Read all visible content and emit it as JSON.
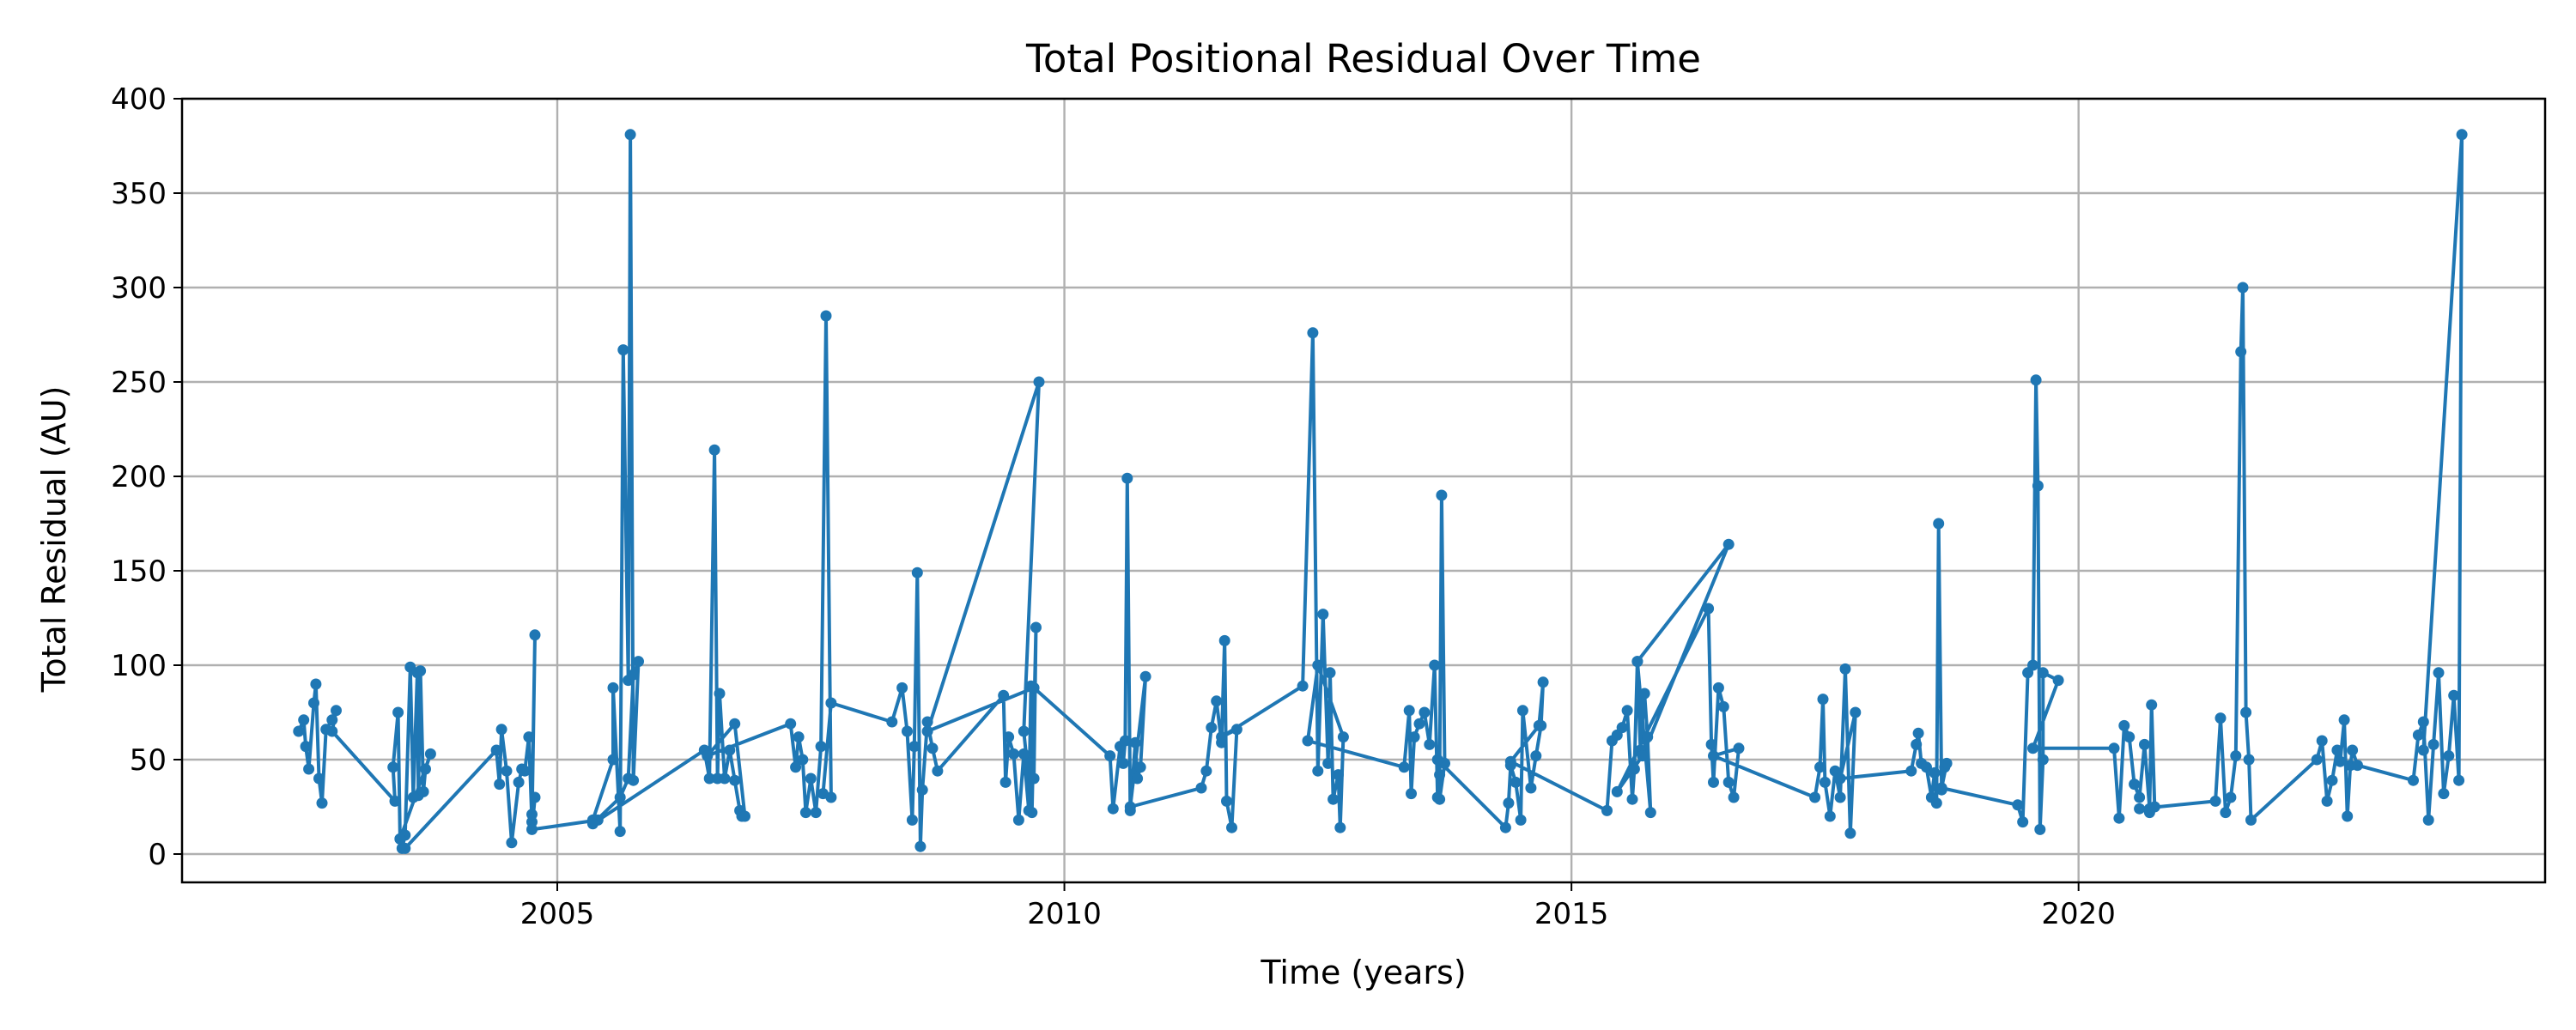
{
  "chart_data": {
    "type": "line",
    "title": "Total Positional Residual Over Time",
    "xlabel": "Time (years)",
    "ylabel": "Total Residual (AU)",
    "xlim": [
      2001.3,
      2024.6
    ],
    "ylim": [
      -15,
      400
    ],
    "x_ticks": [
      2005,
      2010,
      2015,
      2020
    ],
    "y_ticks": [
      0,
      50,
      100,
      150,
      200,
      250,
      300,
      350,
      400
    ],
    "grid": true,
    "marker": "circle",
    "line_color": "#1f77b4",
    "series": [
      {
        "points": [
          [
            2002.45,
            65
          ],
          [
            2002.5,
            71
          ],
          [
            2002.52,
            57
          ],
          [
            2002.55,
            45
          ],
          [
            2002.6,
            80
          ],
          [
            2002.62,
            90
          ],
          [
            2002.65,
            40
          ],
          [
            2002.68,
            27
          ],
          [
            2002.72,
            66
          ],
          [
            2002.78,
            71
          ],
          [
            2002.82,
            76
          ],
          [
            2002.78,
            65
          ],
          [
            2003.4,
            28
          ],
          [
            2003.38,
            46
          ],
          [
            2003.43,
            75
          ],
          [
            2003.45,
            8
          ],
          [
            2003.47,
            3
          ],
          [
            2003.5,
            10
          ],
          [
            2003.55,
            99
          ],
          [
            2003.58,
            30
          ],
          [
            2003.62,
            96
          ],
          [
            2003.63,
            31
          ],
          [
            2003.65,
            97
          ],
          [
            2003.68,
            33
          ],
          [
            2003.7,
            45
          ],
          [
            2003.75,
            53
          ],
          [
            2003.45,
            8
          ],
          [
            2003.5,
            3
          ],
          [
            2004.4,
            55
          ],
          [
            2004.43,
            37
          ],
          [
            2004.45,
            66
          ],
          [
            2004.5,
            44
          ],
          [
            2004.55,
            6
          ],
          [
            2004.62,
            38
          ],
          [
            2004.65,
            45
          ],
          [
            2004.68,
            44
          ],
          [
            2004.72,
            62
          ],
          [
            2004.75,
            17
          ],
          [
            2004.78,
            116
          ],
          [
            2004.75,
            21
          ],
          [
            2004.78,
            30
          ],
          [
            2004.75,
            13
          ],
          [
            2005.4,
            18
          ],
          [
            2005.35,
            18
          ],
          [
            2005.55,
            50
          ],
          [
            2005.55,
            88
          ],
          [
            2005.62,
            12
          ],
          [
            2005.65,
            267
          ],
          [
            2005.7,
            92
          ],
          [
            2005.72,
            381
          ],
          [
            2005.75,
            39
          ],
          [
            2005.8,
            102
          ],
          [
            2005.75,
            95
          ],
          [
            2005.7,
            40
          ],
          [
            2005.62,
            30
          ],
          [
            2005.35,
            16
          ],
          [
            2006.45,
            55
          ],
          [
            2006.5,
            40
          ],
          [
            2006.55,
            214
          ],
          [
            2006.58,
            40
          ],
          [
            2006.6,
            85
          ],
          [
            2006.65,
            40
          ],
          [
            2006.7,
            55
          ],
          [
            2006.75,
            39
          ],
          [
            2006.8,
            23
          ],
          [
            2006.82,
            20
          ],
          [
            2006.85,
            20
          ],
          [
            2006.75,
            69
          ],
          [
            2006.48,
            52
          ],
          [
            2007.3,
            69
          ],
          [
            2007.35,
            46
          ],
          [
            2007.38,
            62
          ],
          [
            2007.42,
            50
          ],
          [
            2007.45,
            22
          ],
          [
            2007.5,
            40
          ],
          [
            2007.55,
            22
          ],
          [
            2007.6,
            57
          ],
          [
            2007.65,
            285
          ],
          [
            2007.7,
            30
          ],
          [
            2007.62,
            32
          ],
          [
            2007.7,
            80
          ],
          [
            2008.3,
            70
          ],
          [
            2008.4,
            88
          ],
          [
            2008.45,
            65
          ],
          [
            2008.5,
            18
          ],
          [
            2008.52,
            57
          ],
          [
            2008.55,
            149
          ],
          [
            2008.58,
            4
          ],
          [
            2008.6,
            34
          ],
          [
            2008.65,
            70
          ],
          [
            2008.7,
            56
          ],
          [
            2008.75,
            44
          ],
          [
            2009.4,
            84
          ],
          [
            2009.42,
            38
          ],
          [
            2009.45,
            62
          ],
          [
            2009.5,
            53
          ],
          [
            2009.55,
            18
          ],
          [
            2009.6,
            53
          ],
          [
            2009.65,
            23
          ],
          [
            2009.67,
            89
          ],
          [
            2009.7,
            40
          ],
          [
            2009.72,
            120
          ],
          [
            2009.68,
            22
          ],
          [
            2009.6,
            65
          ],
          [
            2009.75,
            250
          ],
          [
            2008.65,
            65
          ],
          [
            2009.7,
            88
          ],
          [
            2010.45,
            52
          ],
          [
            2010.48,
            24
          ],
          [
            2010.55,
            57
          ],
          [
            2010.58,
            48
          ],
          [
            2010.6,
            60
          ],
          [
            2010.62,
            199
          ],
          [
            2010.65,
            23
          ],
          [
            2010.7,
            59
          ],
          [
            2010.72,
            40
          ],
          [
            2010.75,
            46
          ],
          [
            2010.8,
            94
          ],
          [
            2010.65,
            25
          ],
          [
            2011.35,
            35
          ],
          [
            2011.4,
            44
          ],
          [
            2011.45,
            67
          ],
          [
            2011.5,
            81
          ],
          [
            2011.55,
            59
          ],
          [
            2011.58,
            113
          ],
          [
            2011.6,
            28
          ],
          [
            2011.65,
            14
          ],
          [
            2011.7,
            66
          ],
          [
            2011.55,
            62
          ],
          [
            2012.35,
            89
          ],
          [
            2012.45,
            276
          ],
          [
            2012.5,
            44
          ],
          [
            2012.55,
            127
          ],
          [
            2012.6,
            48
          ],
          [
            2012.62,
            96
          ],
          [
            2012.65,
            29
          ],
          [
            2012.7,
            42
          ],
          [
            2012.72,
            14
          ],
          [
            2012.75,
            62
          ],
          [
            2012.5,
            100
          ],
          [
            2012.4,
            60
          ],
          [
            2013.35,
            46
          ],
          [
            2013.4,
            76
          ],
          [
            2013.42,
            32
          ],
          [
            2013.45,
            62
          ],
          [
            2013.5,
            69
          ],
          [
            2013.55,
            75
          ],
          [
            2013.6,
            58
          ],
          [
            2013.65,
            100
          ],
          [
            2013.68,
            30
          ],
          [
            2013.7,
            42
          ],
          [
            2013.72,
            190
          ],
          [
            2013.75,
            48
          ],
          [
            2013.7,
            29
          ],
          [
            2013.68,
            50
          ],
          [
            2014.35,
            14
          ],
          [
            2014.38,
            27
          ],
          [
            2014.4,
            47
          ],
          [
            2014.45,
            38
          ],
          [
            2014.5,
            18
          ],
          [
            2014.52,
            76
          ],
          [
            2014.6,
            35
          ],
          [
            2014.65,
            52
          ],
          [
            2014.7,
            68
          ],
          [
            2014.72,
            91
          ],
          [
            2014.68,
            68
          ],
          [
            2014.4,
            49
          ],
          [
            2015.35,
            23
          ],
          [
            2015.4,
            60
          ],
          [
            2015.45,
            63
          ],
          [
            2015.5,
            67
          ],
          [
            2015.55,
            76
          ],
          [
            2015.6,
            29
          ],
          [
            2015.62,
            45
          ],
          [
            2015.65,
            102
          ],
          [
            2015.68,
            55
          ],
          [
            2015.72,
            85
          ],
          [
            2015.75,
            62
          ],
          [
            2015.78,
            22
          ],
          [
            2015.65,
            102
          ],
          [
            2016.55,
            164
          ],
          [
            2015.7,
            52
          ],
          [
            2015.45,
            33
          ],
          [
            2016.35,
            130
          ],
          [
            2016.38,
            58
          ],
          [
            2016.4,
            38
          ],
          [
            2016.45,
            88
          ],
          [
            2016.5,
            78
          ],
          [
            2016.55,
            38
          ],
          [
            2016.6,
            30
          ],
          [
            2016.65,
            56
          ],
          [
            2016.4,
            52
          ],
          [
            2017.4,
            30
          ],
          [
            2017.45,
            46
          ],
          [
            2017.48,
            82
          ],
          [
            2017.5,
            38
          ],
          [
            2017.55,
            20
          ],
          [
            2017.6,
            44
          ],
          [
            2017.65,
            30
          ],
          [
            2017.7,
            98
          ],
          [
            2017.75,
            11
          ],
          [
            2017.8,
            75
          ],
          [
            2017.65,
            40
          ],
          [
            2018.35,
            44
          ],
          [
            2018.4,
            58
          ],
          [
            2018.42,
            64
          ],
          [
            2018.45,
            48
          ],
          [
            2018.5,
            46
          ],
          [
            2018.55,
            30
          ],
          [
            2018.58,
            43
          ],
          [
            2018.6,
            27
          ],
          [
            2018.62,
            175
          ],
          [
            2018.65,
            34
          ],
          [
            2018.68,
            46
          ],
          [
            2018.7,
            48
          ],
          [
            2018.65,
            35
          ],
          [
            2019.4,
            26
          ],
          [
            2019.45,
            17
          ],
          [
            2019.5,
            96
          ],
          [
            2019.55,
            100
          ],
          [
            2019.58,
            251
          ],
          [
            2019.6,
            195
          ],
          [
            2019.62,
            13
          ],
          [
            2019.65,
            50
          ],
          [
            2019.65,
            96
          ],
          [
            2019.8,
            92
          ],
          [
            2019.55,
            56
          ],
          [
            2020.35,
            56
          ],
          [
            2020.4,
            19
          ],
          [
            2020.45,
            68
          ],
          [
            2020.5,
            62
          ],
          [
            2020.55,
            37
          ],
          [
            2020.6,
            30
          ],
          [
            2020.65,
            58
          ],
          [
            2020.7,
            24
          ],
          [
            2020.72,
            79
          ],
          [
            2020.75,
            25
          ],
          [
            2020.7,
            22
          ],
          [
            2020.6,
            24
          ],
          [
            2021.35,
            28
          ],
          [
            2021.4,
            72
          ],
          [
            2021.45,
            22
          ],
          [
            2021.5,
            30
          ],
          [
            2021.55,
            52
          ],
          [
            2021.6,
            266
          ],
          [
            2021.62,
            300
          ],
          [
            2021.65,
            75
          ],
          [
            2021.68,
            50
          ],
          [
            2021.7,
            18
          ],
          [
            2022.35,
            50
          ],
          [
            2022.4,
            60
          ],
          [
            2022.45,
            28
          ],
          [
            2022.5,
            39
          ],
          [
            2022.55,
            55
          ],
          [
            2022.58,
            49
          ],
          [
            2022.62,
            71
          ],
          [
            2022.65,
            20
          ],
          [
            2022.68,
            47
          ],
          [
            2022.7,
            55
          ],
          [
            2022.75,
            47
          ],
          [
            2023.3,
            39
          ],
          [
            2023.35,
            63
          ],
          [
            2023.4,
            70
          ],
          [
            2023.45,
            18
          ],
          [
            2023.5,
            58
          ],
          [
            2023.55,
            96
          ],
          [
            2023.6,
            32
          ],
          [
            2023.65,
            52
          ],
          [
            2023.7,
            84
          ],
          [
            2023.75,
            39
          ],
          [
            2023.78,
            381
          ],
          [
            2023.4,
            55
          ]
        ]
      }
    ]
  }
}
